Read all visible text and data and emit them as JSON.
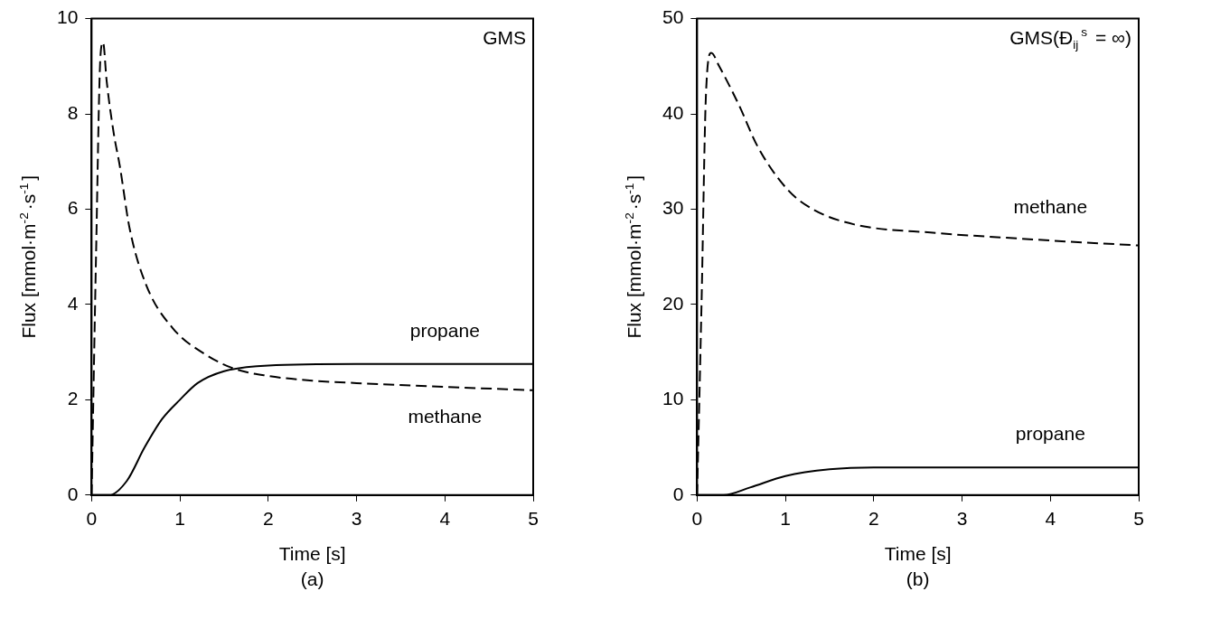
{
  "chart_data": [
    {
      "type": "line",
      "title": "GMS",
      "xlabel": "Time [s]",
      "ylabel": "Flux [mmol·m$^{-2}$·s$^{-1}$]",
      "xlim": [
        0,
        5
      ],
      "xticks": [
        0,
        1,
        2,
        3,
        4,
        5
      ],
      "ylim": [
        0,
        10
      ],
      "yticks": [
        0,
        2,
        4,
        6,
        8,
        10
      ],
      "grid": false,
      "legend": false,
      "marker": "none",
      "series": [
        {
          "name": "methane",
          "color": "#000000",
          "line_style": "dashed",
          "x": [
            0,
            0.05,
            0.1,
            0.13,
            0.17,
            0.25,
            0.32,
            0.43,
            0.62,
            0.92,
            1.29,
            1.62,
            2,
            2.5,
            3,
            4,
            5
          ],
          "values": [
            0,
            5.0,
            9.2,
            9.5,
            8.7,
            7.6,
            6.9,
            5.6,
            4.4,
            3.5,
            2.95,
            2.65,
            2.5,
            2.4,
            2.35,
            2.27,
            2.2
          ]
        },
        {
          "name": "propane",
          "color": "#000000",
          "line_style": "solid",
          "x": [
            0,
            0.2,
            0.4,
            0.6,
            0.8,
            1.0,
            1.2,
            1.5,
            2,
            3,
            4,
            5
          ],
          "values": [
            0,
            0,
            0.3,
            1.0,
            1.6,
            2.0,
            2.35,
            2.6,
            2.72,
            2.75,
            2.75,
            2.75
          ]
        }
      ],
      "annotations": [
        "(a)"
      ]
    },
    {
      "type": "line",
      "title": "GMS(Đ$_{ij}$$^{s}$ = ∞)",
      "xlabel": "Time [s]",
      "ylabel": "Flux [mmol·m$^{-2}$·s$^{-1}$]",
      "xlim": [
        0,
        5
      ],
      "xticks": [
        0,
        1,
        2,
        3,
        4,
        5
      ],
      "ylim": [
        0,
        50
      ],
      "yticks": [
        0,
        10,
        20,
        30,
        40,
        50
      ],
      "grid": false,
      "legend": false,
      "marker": "none",
      "series": [
        {
          "name": "methane",
          "color": "#000000",
          "line_style": "dashed",
          "x": [
            0,
            0.05,
            0.1,
            0.16,
            0.25,
            0.47,
            0.69,
            1.03,
            1.33,
            1.78,
            2.71,
            3.5,
            4.2,
            5
          ],
          "values": [
            0,
            20,
            42,
            46.4,
            45,
            41,
            36.5,
            32,
            29.9,
            28.4,
            27.5,
            27,
            26.6,
            26.2
          ]
        },
        {
          "name": "propane",
          "color": "#000000",
          "line_style": "solid",
          "x": [
            0,
            0.3,
            0.6,
            1,
            1.5,
            2,
            3,
            5
          ],
          "values": [
            0,
            0,
            0.8,
            2.0,
            2.7,
            2.9,
            2.9,
            2.9
          ]
        }
      ],
      "annotations": [
        "(b)"
      ]
    }
  ]
}
